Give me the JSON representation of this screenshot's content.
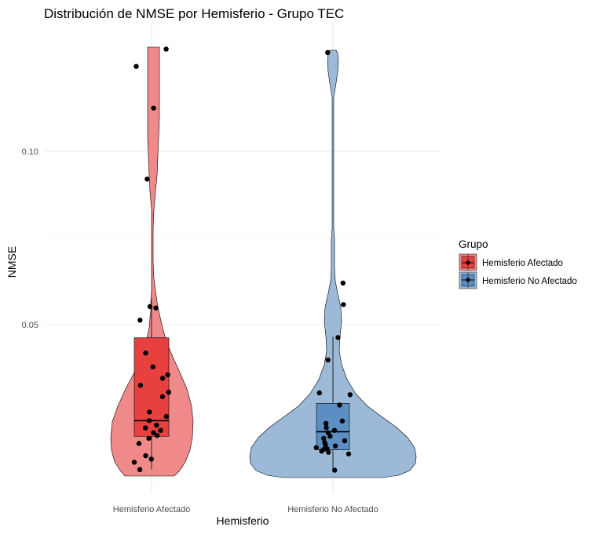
{
  "chart_data": {
    "type": "violin",
    "title": "Distribución de NMSE por Hemisferio - Grupo TEC",
    "xlabel": "Hemisferio",
    "ylabel": "NMSE",
    "categories": [
      "Hemisferio Afectado",
      "Hemisferio No Afectado"
    ],
    "ylim": [
      0.0065,
      0.131
    ],
    "y_ticks": [
      0.05,
      0.1
    ],
    "y_tick_labels": [
      "0.05",
      "0.10"
    ],
    "grid": true,
    "legend": {
      "title": "Grupo",
      "position": "right",
      "entries": [
        "Hemisferio Afectado",
        "Hemisferio No Afectado"
      ]
    },
    "colors": {
      "afectado_violin": "#f08a8a",
      "afectado_box": "#e8403f",
      "no_afectado_violin": "#9cbad7",
      "no_afectado_box": "#5b8fc4",
      "points": "#000000"
    },
    "series": [
      {
        "name": "Hemisferio Afectado",
        "boxplot": {
          "lower_whisker": 0.0082,
          "q1": 0.0178,
          "median": 0.0223,
          "q3": 0.0462,
          "upper_whisker": 0.0573
        },
        "violin_range": [
          0.0082,
          0.1295
        ],
        "points": [
          0.1295,
          0.1245,
          0.1125,
          0.092,
          0.0552,
          0.0548,
          0.0513,
          0.0418,
          0.0378,
          0.0355,
          0.0345,
          0.0325,
          0.0305,
          0.0292,
          0.0248,
          0.0235,
          0.0223,
          0.021,
          0.0202,
          0.0195,
          0.0188,
          0.018,
          0.0172,
          0.0157,
          0.0122,
          0.0112,
          0.0103,
          0.0082
        ]
      },
      {
        "name": "Hemisferio No Afectado",
        "boxplot": {
          "lower_whisker": 0.008,
          "q1": 0.0139,
          "median": 0.0191,
          "q3": 0.0273,
          "upper_whisker": 0.0465
        },
        "violin_range": [
          0.008,
          0.1285
        ],
        "points": [
          0.1285,
          0.062,
          0.0558,
          0.0463,
          0.0398,
          0.0303,
          0.0298,
          0.0268,
          0.0222,
          0.0215,
          0.0203,
          0.0195,
          0.0188,
          0.0178,
          0.0172,
          0.0165,
          0.016,
          0.0153,
          0.015,
          0.0145,
          0.0142,
          0.014,
          0.0135,
          0.0132,
          0.0127,
          0.008
        ]
      }
    ]
  }
}
